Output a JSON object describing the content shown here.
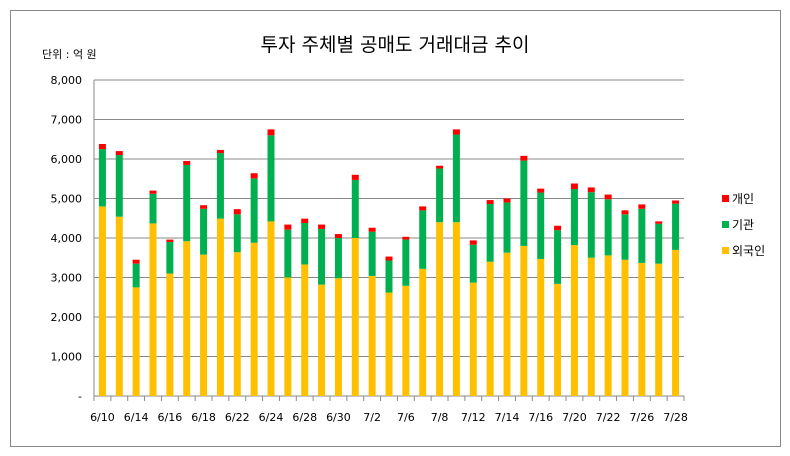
{
  "chart_data": {
    "type": "bar",
    "stacked": true,
    "title": "투자 주체별 공매도 거래대금 추이",
    "unit_label": "단위 : 억 원",
    "xlabel": "",
    "ylabel": "",
    "ylim": [
      0,
      8000
    ],
    "yticks": [
      "-",
      "1,000",
      "2,000",
      "3,000",
      "4,000",
      "5,000",
      "6,000",
      "7,000",
      "8,000"
    ],
    "grid": true,
    "legend_position": "right",
    "categories": [
      "6/10",
      "",
      "6/14",
      "",
      "6/16",
      "",
      "6/18",
      "",
      "6/22",
      "",
      "6/24",
      "",
      "6/28",
      "",
      "6/30",
      "",
      "7/2",
      "",
      "7/6",
      "",
      "7/8",
      "",
      "7/12",
      "",
      "7/14",
      "",
      "7/16",
      "",
      "7/20",
      "",
      "7/22",
      "",
      "7/26",
      "",
      "7/28"
    ],
    "series": [
      {
        "name": "외국인",
        "color": "#FFC000",
        "values": [
          4800,
          4540,
          2750,
          4370,
          3100,
          3920,
          3580,
          4490,
          3640,
          3880,
          4420,
          3000,
          3330,
          2820,
          2980,
          4000,
          3040,
          2620,
          2790,
          3220,
          4400,
          4400,
          2870,
          3400,
          3630,
          3800,
          3470,
          2840,
          3820,
          3500,
          3560,
          3450,
          3370,
          3350,
          3700
        ]
      },
      {
        "name": "기관",
        "color": "#00B050",
        "values": [
          1450,
          1560,
          600,
          750,
          800,
          1930,
          1160,
          1660,
          960,
          1630,
          2180,
          1210,
          1050,
          1410,
          1020,
          1470,
          1120,
          810,
          1170,
          1480,
          1360,
          2220,
          960,
          1460,
          1270,
          2160,
          1680,
          1360,
          1420,
          1660,
          1420,
          1150,
          1370,
          1010,
          1170
        ]
      },
      {
        "name": "개인",
        "color": "#FF0000",
        "values": [
          130,
          100,
          100,
          80,
          60,
          100,
          90,
          80,
          130,
          130,
          150,
          130,
          110,
          110,
          100,
          130,
          100,
          100,
          70,
          100,
          70,
          130,
          110,
          100,
          100,
          120,
          100,
          110,
          140,
          120,
          120,
          100,
          110,
          60,
          80
        ]
      }
    ]
  }
}
